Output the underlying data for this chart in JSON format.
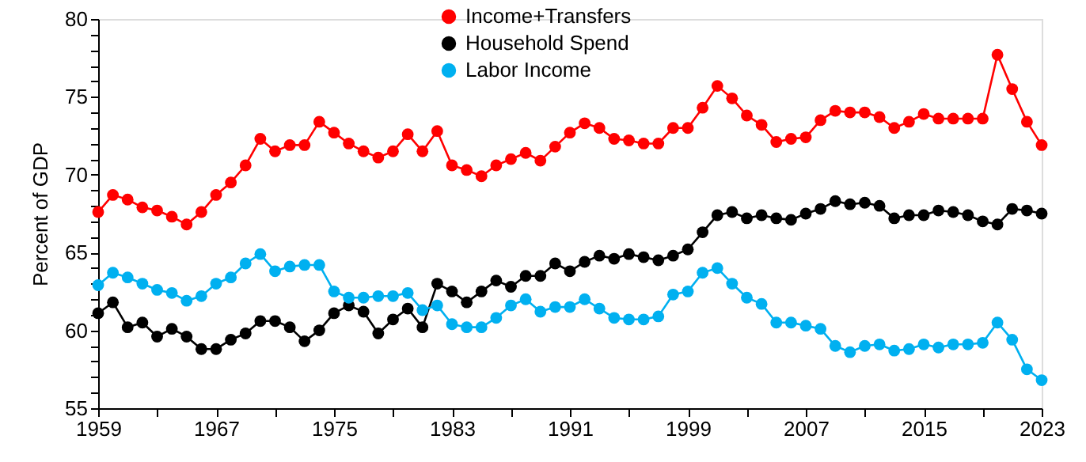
{
  "chart_data": {
    "type": "line",
    "ylabel": "Percent of GDP",
    "x": [
      1959,
      1960,
      1961,
      1962,
      1963,
      1964,
      1965,
      1966,
      1967,
      1968,
      1969,
      1970,
      1971,
      1972,
      1973,
      1974,
      1975,
      1976,
      1977,
      1978,
      1979,
      1980,
      1981,
      1982,
      1983,
      1984,
      1985,
      1986,
      1987,
      1988,
      1989,
      1990,
      1991,
      1992,
      1993,
      1994,
      1995,
      1996,
      1997,
      1998,
      1999,
      2000,
      2001,
      2002,
      2003,
      2004,
      2005,
      2006,
      2007,
      2008,
      2009,
      2010,
      2011,
      2012,
      2013,
      2014,
      2015,
      2016,
      2017,
      2018,
      2019,
      2020,
      2021,
      2022,
      2023
    ],
    "series": [
      {
        "name": "Income+Transfers",
        "color": "#ff0000",
        "values": [
          67.6,
          68.7,
          68.4,
          67.9,
          67.7,
          67.3,
          66.8,
          67.6,
          68.7,
          69.5,
          70.6,
          72.3,
          71.5,
          71.9,
          71.9,
          73.4,
          72.7,
          72.0,
          71.5,
          71.1,
          71.5,
          72.6,
          71.5,
          72.8,
          70.6,
          70.3,
          69.9,
          70.6,
          71.0,
          71.4,
          70.9,
          71.8,
          72.7,
          73.3,
          73.0,
          72.3,
          72.2,
          72.0,
          72.0,
          73.0,
          73.0,
          74.3,
          75.7,
          74.9,
          73.8,
          73.2,
          72.1,
          72.3,
          72.4,
          73.5,
          74.1,
          74.0,
          74.0,
          73.7,
          73.0,
          73.4,
          73.9,
          73.6,
          73.6,
          73.6,
          73.6,
          77.7,
          75.5,
          73.4,
          71.9
        ]
      },
      {
        "name": "Household Spend",
        "color": "#000000",
        "values": [
          61.1,
          61.8,
          60.2,
          60.5,
          59.6,
          60.1,
          59.6,
          58.8,
          58.8,
          59.4,
          59.8,
          60.6,
          60.6,
          60.2,
          59.3,
          60.0,
          61.1,
          61.6,
          61.2,
          59.8,
          60.7,
          61.4,
          60.2,
          63.0,
          62.5,
          61.8,
          62.5,
          63.2,
          62.8,
          63.5,
          63.5,
          64.3,
          63.8,
          64.4,
          64.8,
          64.6,
          64.9,
          64.7,
          64.5,
          64.8,
          65.2,
          66.3,
          67.4,
          67.6,
          67.2,
          67.4,
          67.2,
          67.1,
          67.5,
          67.8,
          68.3,
          68.1,
          68.2,
          68.0,
          67.2,
          67.4,
          67.4,
          67.7,
          67.6,
          67.4,
          67.0,
          66.8,
          67.8,
          67.7,
          67.5
        ]
      },
      {
        "name": "Labor Income",
        "color": "#00b0f0",
        "values": [
          62.9,
          63.7,
          63.4,
          63.0,
          62.6,
          62.4,
          61.9,
          62.2,
          63.0,
          63.4,
          64.3,
          64.9,
          63.8,
          64.1,
          64.2,
          64.2,
          62.5,
          62.1,
          62.1,
          62.2,
          62.2,
          62.4,
          61.3,
          61.6,
          60.4,
          60.2,
          60.2,
          60.8,
          61.6,
          62.0,
          61.2,
          61.5,
          61.5,
          62.0,
          61.4,
          60.8,
          60.7,
          60.7,
          60.9,
          62.3,
          62.5,
          63.7,
          64.0,
          63.0,
          62.1,
          61.7,
          60.5,
          60.5,
          60.3,
          60.1,
          59.0,
          58.6,
          59.0,
          59.1,
          58.7,
          58.8,
          59.1,
          58.9,
          59.1,
          59.1,
          59.2,
          60.5,
          59.4,
          57.5,
          56.8
        ]
      }
    ],
    "xlim": [
      1959,
      2023
    ],
    "xticks": [
      1959,
      {
        "value": 1963,
        "label": null
      },
      1967,
      {
        "value": 1971,
        "label": null
      },
      1975,
      {
        "value": 1979,
        "label": null
      },
      1983,
      {
        "value": 1987,
        "label": null
      },
      1991,
      {
        "value": 1995,
        "label": null
      },
      1999,
      {
        "value": 2003,
        "label": null
      },
      2007,
      {
        "value": 2011,
        "label": null
      },
      2015,
      {
        "value": 2019,
        "label": null
      },
      2023
    ],
    "ylim": [
      55,
      80
    ],
    "yticks": [
      55,
      {
        "value": 56,
        "label": null
      },
      {
        "value": 57,
        "label": null
      },
      {
        "value": 58,
        "label": null
      },
      {
        "value": 59,
        "label": null
      },
      60,
      {
        "value": 61,
        "label": null
      },
      {
        "value": 62,
        "label": null
      },
      {
        "value": 63,
        "label": null
      },
      {
        "value": 64,
        "label": null
      },
      65,
      {
        "value": 66,
        "label": null
      },
      {
        "value": 67,
        "label": null
      },
      {
        "value": 68,
        "label": null
      },
      {
        "value": 69,
        "label": null
      },
      70,
      {
        "value": 71,
        "label": null
      },
      {
        "value": 72,
        "label": null
      },
      {
        "value": 73,
        "label": null
      },
      {
        "value": 74,
        "label": null
      },
      75,
      {
        "value": 76,
        "label": null
      },
      {
        "value": 77,
        "label": null
      },
      {
        "value": 78,
        "label": null
      },
      {
        "value": 79,
        "label": null
      },
      80
    ],
    "grid": false,
    "legend": "top",
    "marker": "circle",
    "line_style": "solid"
  }
}
